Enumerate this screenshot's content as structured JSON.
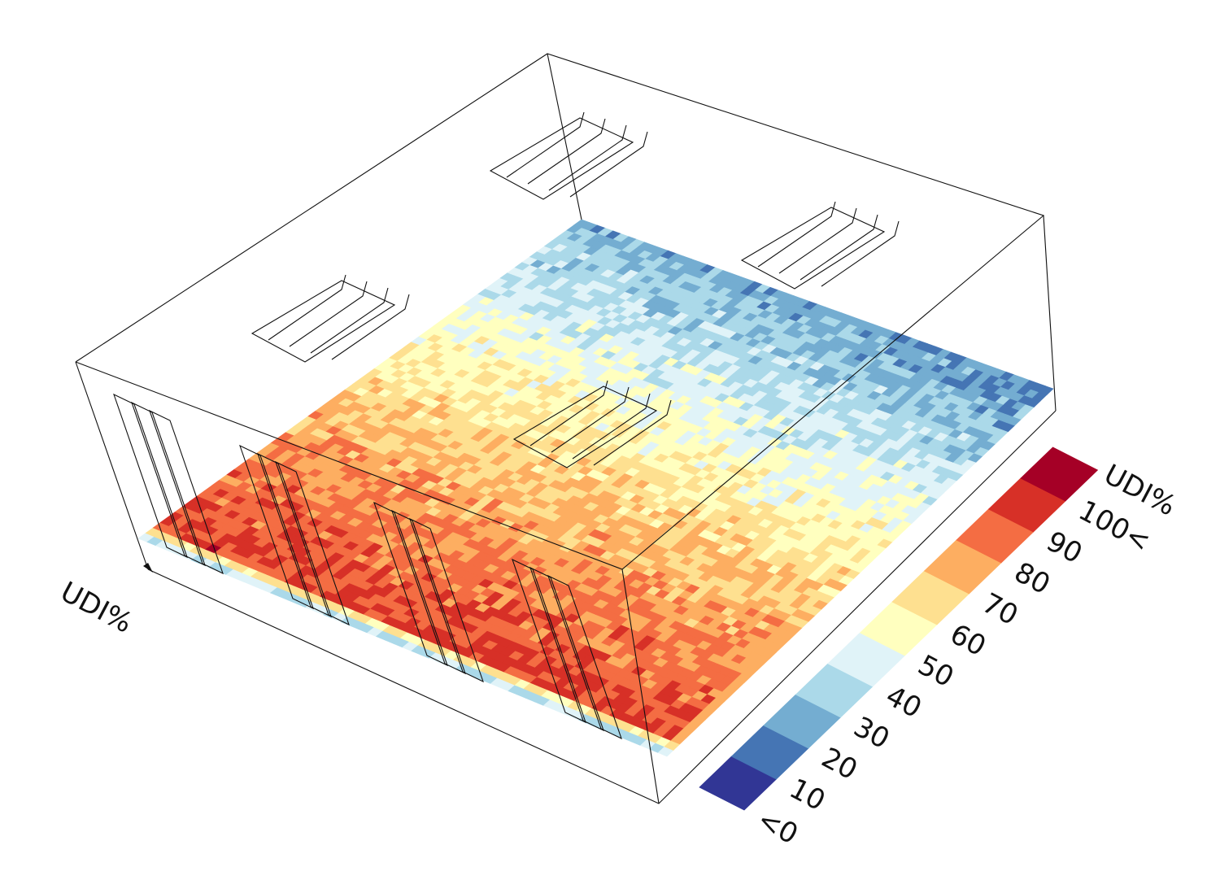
{
  "floor_label": "UDI%",
  "legend": {
    "title": "UDI%",
    "labels": [
      "<0",
      "10",
      "20",
      "30",
      "40",
      "50",
      "60",
      "70",
      "80",
      "90",
      "100<"
    ],
    "colors": [
      "#313695",
      "#4575b4",
      "#74add1",
      "#abd9e9",
      "#e0f3f8",
      "#ffffbf",
      "#fee090",
      "#fdae61",
      "#f46d43",
      "#d73027",
      "#a50026"
    ]
  }
}
